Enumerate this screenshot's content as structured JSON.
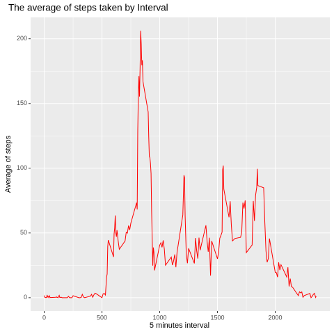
{
  "chart_data": {
    "type": "line",
    "title": "The average of steps taken by Interval",
    "x_label": "5 minutes interval",
    "y_label": "Average of steps",
    "color": "#ff0000",
    "grid": true,
    "xlim": [
      -117.75,
      2472.75
    ],
    "ylim": [
      -10.3,
      216.5
    ],
    "xticks": [
      0,
      500,
      1000,
      1500,
      2000
    ],
    "yticks": [
      0,
      50,
      100,
      150,
      200
    ],
    "x": [
      0,
      5,
      10,
      15,
      20,
      25,
      30,
      35,
      40,
      45,
      50,
      55,
      100,
      105,
      110,
      115,
      120,
      125,
      130,
      135,
      140,
      145,
      150,
      155,
      200,
      210,
      220,
      230,
      240,
      250,
      300,
      310,
      320,
      330,
      340,
      350,
      400,
      410,
      420,
      430,
      440,
      450,
      500,
      510,
      520,
      530,
      540,
      545,
      550,
      555,
      600,
      605,
      610,
      615,
      620,
      625,
      630,
      640,
      650,
      700,
      710,
      720,
      730,
      740,
      750,
      800,
      805,
      810,
      815,
      820,
      825,
      830,
      835,
      840,
      845,
      850,
      855,
      900,
      905,
      910,
      915,
      920,
      925,
      930,
      935,
      940,
      945,
      950,
      955,
      1000,
      1010,
      1020,
      1030,
      1040,
      1050,
      1100,
      1110,
      1120,
      1130,
      1140,
      1150,
      1200,
      1210,
      1215,
      1220,
      1230,
      1240,
      1250,
      1300,
      1310,
      1320,
      1330,
      1340,
      1350,
      1400,
      1410,
      1420,
      1430,
      1440,
      1450,
      1500,
      1510,
      1520,
      1530,
      1540,
      1545,
      1550,
      1555,
      1600,
      1610,
      1620,
      1630,
      1640,
      1650,
      1700,
      1710,
      1720,
      1730,
      1740,
      1750,
      1800,
      1810,
      1820,
      1830,
      1840,
      1845,
      1850,
      1900,
      1910,
      1920,
      1930,
      1940,
      1950,
      2000,
      2010,
      2020,
      2030,
      2040,
      2050,
      2100,
      2110,
      2120,
      2130,
      2140,
      2150,
      2200,
      2210,
      2220,
      2230,
      2240,
      2250,
      2300,
      2310,
      2320,
      2330,
      2340,
      2350,
      2355
    ],
    "values": [
      1.7,
      0.3,
      0.1,
      0.2,
      0.1,
      2.1,
      0.5,
      0.9,
      0,
      1.5,
      0.3,
      0.1,
      0.3,
      0.7,
      0.2,
      0.3,
      0,
      1.1,
      1.8,
      0.2,
      0.2,
      0.4,
      0.3,
      0,
      0,
      1.1,
      0,
      0,
      0,
      1.5,
      0,
      0,
      0.2,
      2.6,
      0.5,
      0,
      1.2,
      2.6,
      0.3,
      2.2,
      3.5,
      3.1,
      0,
      3,
      3.3,
      2.1,
      16,
      18.3,
      39.5,
      44.5,
      31.5,
      49.3,
      53.8,
      63.5,
      50,
      47.1,
      52.2,
      44,
      37.4,
      43.8,
      50.5,
      49.9,
      55.7,
      52.3,
      57.6,
      73.4,
      68.2,
      129.4,
      157.5,
      171.2,
      155.4,
      177.3,
      206.2,
      195.9,
      179.6,
      183.4,
      167,
      143.5,
      124,
      109.1,
      108.1,
      103.7,
      95.9,
      66.2,
      45.2,
      24.8,
      38.8,
      35,
      21.1,
      40.6,
      42.4,
      38.9,
      44.3,
      37.4,
      25.1,
      31.4,
      25.2,
      28.4,
      33.4,
      23.5,
      35.1,
      63.9,
      94.6,
      92.8,
      63.4,
      33.2,
      26.6,
      38.1,
      26.5,
      46.1,
      36.2,
      30.2,
      46.4,
      36.7,
      55.9,
      43.6,
      35.5,
      46.3,
      17.1,
      43.8,
      30,
      35.5,
      45.9,
      48.1,
      50.7,
      98.7,
      102.1,
      83.9,
      62.1,
      74.5,
      56.3,
      43.9,
      44.7,
      45.7,
      46.6,
      50.7,
      73.4,
      68.9,
      75.1,
      34.8,
      40.7,
      74.7,
      59.3,
      79.1,
      85.3,
      99.5,
      86.6,
      84.9,
      58,
      36.1,
      27.4,
      30.2,
      45.7,
      19.6,
      19.3,
      15.9,
      27.3,
      21.3,
      25.5,
      15.9,
      23.5,
      8.7,
      14.7,
      8.7,
      8.1,
      1.6,
      4.6,
      3.7,
      4.5,
      0.3,
      1.6,
      3.3,
      0,
      1,
      2.6,
      3.4,
      0.2,
      1.1
    ]
  }
}
